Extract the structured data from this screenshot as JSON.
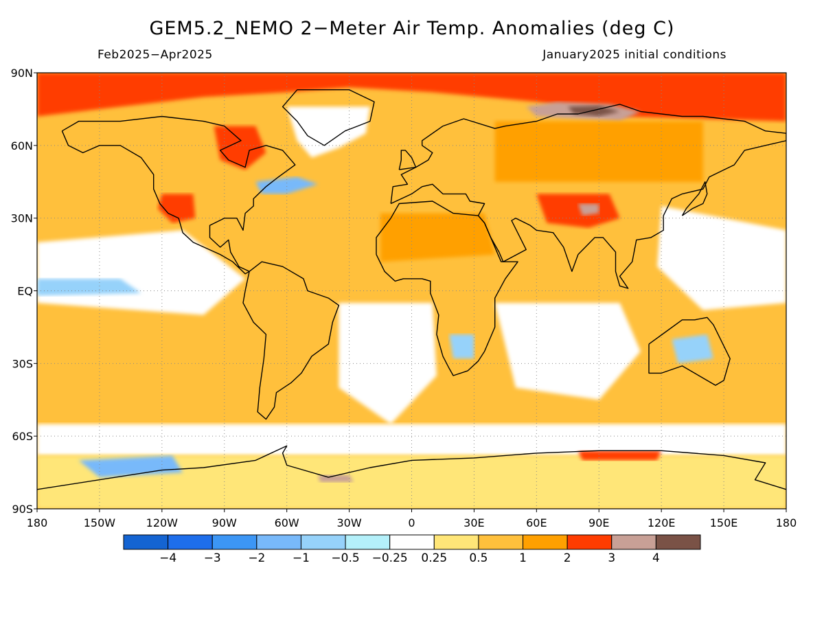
{
  "title": "GEM5.2_NEMO 2−Meter Air Temp. Anomalies (deg C)",
  "subtitle_left": "Feb2025−Apr2025",
  "subtitle_right": "January2025 initial conditions",
  "map": {
    "projection": "equirectangular",
    "lon_range": [
      -180,
      180
    ],
    "lat_range": [
      -90,
      90
    ],
    "grid": "dotted",
    "coastlines": "black"
  },
  "lat_ticks": [
    {
      "lat": 90,
      "label": "90N"
    },
    {
      "lat": 60,
      "label": "60N"
    },
    {
      "lat": 30,
      "label": "30N"
    },
    {
      "lat": 0,
      "label": "EQ"
    },
    {
      "lat": -30,
      "label": "30S"
    },
    {
      "lat": -60,
      "label": "60S"
    },
    {
      "lat": -90,
      "label": "90S"
    }
  ],
  "lon_ticks": [
    {
      "lon": -180,
      "label": "180"
    },
    {
      "lon": -150,
      "label": "150W"
    },
    {
      "lon": -120,
      "label": "120W"
    },
    {
      "lon": -90,
      "label": "90W"
    },
    {
      "lon": -60,
      "label": "60W"
    },
    {
      "lon": -30,
      "label": "30W"
    },
    {
      "lon": 0,
      "label": "0"
    },
    {
      "lon": 30,
      "label": "30E"
    },
    {
      "lon": 60,
      "label": "60E"
    },
    {
      "lon": 90,
      "label": "90E"
    },
    {
      "lon": 120,
      "label": "120E"
    },
    {
      "lon": 150,
      "label": "150E"
    },
    {
      "lon": 180,
      "label": "180"
    }
  ],
  "colorbar": {
    "colors": [
      "#1464d2",
      "#1e6eeb",
      "#3c96f5",
      "#78b9fa",
      "#96d2fa",
      "#b4f0fa",
      "#ffffff",
      "#ffe678",
      "#ffc03c",
      "#ffa000",
      "#ff3c00",
      "#c8a096",
      "#7a5246"
    ],
    "labels": [
      "−4",
      "−3",
      "−2",
      "−1",
      "−0.5",
      "−0.25",
      "0.25",
      "0.5",
      "1",
      "2",
      "3",
      "4"
    ]
  },
  "palette": {
    "ocean_base": "#ffc03c",
    "warm": "#ffa000",
    "mild": "#ffe678",
    "neutral": "#ffffff",
    "strong": "#ff3c00",
    "extreme": "#c8a096",
    "very_extreme": "#7a5246",
    "cool": "#96d2fa",
    "cold": "#78b9fa"
  },
  "anomaly_regions": [
    {
      "name": "arctic-warm",
      "level": "strong",
      "pts": [
        [
          -180,
          90
        ],
        [
          180,
          90
        ],
        [
          180,
          70
        ],
        [
          100,
          72
        ],
        [
          60,
          78
        ],
        [
          10,
          82
        ],
        [
          -30,
          84
        ],
        [
          -60,
          82
        ],
        [
          -100,
          80
        ],
        [
          -140,
          76
        ],
        [
          -180,
          72
        ]
      ]
    },
    {
      "name": "kara-extreme",
      "level": "extreme",
      "pts": [
        [
          55,
          76
        ],
        [
          70,
          78
        ],
        [
          95,
          77
        ],
        [
          110,
          74
        ],
        [
          100,
          70
        ],
        [
          80,
          71
        ],
        [
          60,
          72
        ]
      ]
    },
    {
      "name": "taymyr-very-extreme",
      "level": "very_extreme",
      "pts": [
        [
          75,
          76
        ],
        [
          90,
          76.5
        ],
        [
          100,
          74
        ],
        [
          90,
          72
        ],
        [
          78,
          73
        ]
      ]
    },
    {
      "name": "greenland-neutral",
      "level": "neutral",
      "pts": [
        [
          -60,
          76
        ],
        [
          -20,
          76
        ],
        [
          -22,
          65
        ],
        [
          -35,
          59
        ],
        [
          -48,
          55
        ],
        [
          -55,
          62
        ]
      ]
    },
    {
      "name": "hudson-strong",
      "level": "strong",
      "pts": [
        [
          -95,
          68
        ],
        [
          -75,
          68
        ],
        [
          -70,
          57
        ],
        [
          -80,
          50
        ],
        [
          -92,
          54
        ]
      ]
    },
    {
      "name": "n-atlantic-cold",
      "level": "cold",
      "pts": [
        [
          -75,
          45
        ],
        [
          -55,
          47
        ],
        [
          -45,
          44
        ],
        [
          -60,
          40
        ],
        [
          -72,
          40
        ]
      ]
    },
    {
      "name": "w-us-strong",
      "level": "strong",
      "pts": [
        [
          -120,
          40
        ],
        [
          -105,
          40
        ],
        [
          -104,
          30
        ],
        [
          -115,
          28
        ],
        [
          -122,
          34
        ]
      ]
    },
    {
      "name": "tibet-strong",
      "level": "strong",
      "pts": [
        [
          60,
          40
        ],
        [
          95,
          40
        ],
        [
          100,
          30
        ],
        [
          85,
          26
        ],
        [
          65,
          28
        ]
      ]
    },
    {
      "name": "tibet-extreme",
      "level": "extreme",
      "pts": [
        [
          80,
          36
        ],
        [
          90,
          36
        ],
        [
          90,
          32
        ],
        [
          82,
          31
        ]
      ]
    },
    {
      "name": "e-pacific-neutral",
      "level": "neutral",
      "pts": [
        [
          -180,
          20
        ],
        [
          -110,
          25
        ],
        [
          -80,
          5
        ],
        [
          -100,
          -10
        ],
        [
          -180,
          -5
        ]
      ]
    },
    {
      "name": "eq-pacific-cool",
      "level": "cool",
      "pts": [
        [
          -180,
          5
        ],
        [
          -140,
          5
        ],
        [
          -130,
          -1
        ],
        [
          -180,
          -2
        ]
      ]
    },
    {
      "name": "s-atlantic-neutral",
      "level": "neutral",
      "pts": [
        [
          -35,
          -5
        ],
        [
          10,
          -5
        ],
        [
          12,
          -35
        ],
        [
          -10,
          -55
        ],
        [
          -35,
          -40
        ]
      ]
    },
    {
      "name": "indian-neutral",
      "level": "neutral",
      "pts": [
        [
          40,
          -5
        ],
        [
          100,
          -5
        ],
        [
          110,
          -25
        ],
        [
          90,
          -45
        ],
        [
          50,
          -40
        ]
      ]
    },
    {
      "name": "w-pacific-neutral",
      "level": "neutral",
      "pts": [
        [
          120,
          35
        ],
        [
          180,
          25
        ],
        [
          180,
          -5
        ],
        [
          140,
          -8
        ],
        [
          118,
          10
        ]
      ]
    },
    {
      "name": "s-ocean-neutral",
      "level": "neutral",
      "pts": [
        [
          -180,
          -55
        ],
        [
          180,
          -55
        ],
        [
          180,
          -68
        ],
        [
          -180,
          -68
        ]
      ]
    },
    {
      "name": "antarctic-mild",
      "level": "mild",
      "pts": [
        [
          -180,
          -68
        ],
        [
          180,
          -68
        ],
        [
          180,
          -90
        ],
        [
          -180,
          -90
        ]
      ]
    },
    {
      "name": "ross-cold",
      "level": "cold",
      "pts": [
        [
          -160,
          -70
        ],
        [
          -115,
          -68
        ],
        [
          -110,
          -75
        ],
        [
          -150,
          -77
        ]
      ]
    },
    {
      "name": "weddell-extreme",
      "level": "extreme",
      "pts": [
        [
          -45,
          -76
        ],
        [
          -30,
          -76
        ],
        [
          -28,
          -79
        ],
        [
          -44,
          -79
        ]
      ]
    },
    {
      "name": "e-antarctic-strong",
      "level": "strong",
      "pts": [
        [
          80,
          -66
        ],
        [
          120,
          -66
        ],
        [
          118,
          -70
        ],
        [
          82,
          -70
        ]
      ]
    },
    {
      "name": "s-africa-cool",
      "level": "cool",
      "pts": [
        [
          18,
          -18
        ],
        [
          30,
          -18
        ],
        [
          30,
          -28
        ],
        [
          20,
          -28
        ]
      ]
    },
    {
      "name": "australia-cool",
      "level": "cool",
      "pts": [
        [
          125,
          -20
        ],
        [
          142,
          -18
        ],
        [
          145,
          -28
        ],
        [
          128,
          -30
        ]
      ]
    },
    {
      "name": "sahara-warm",
      "level": "warm",
      "pts": [
        [
          -15,
          32
        ],
        [
          35,
          32
        ],
        [
          40,
          15
        ],
        [
          -15,
          12
        ]
      ]
    },
    {
      "name": "siberia-warm",
      "level": "warm",
      "pts": [
        [
          40,
          70
        ],
        [
          140,
          70
        ],
        [
          140,
          45
        ],
        [
          40,
          45
        ]
      ]
    }
  ],
  "coastlines": [
    [
      [
        -168,
        66
      ],
      [
        -160,
        70
      ],
      [
        -140,
        70
      ],
      [
        -120,
        72
      ],
      [
        -100,
        70
      ],
      [
        -90,
        68
      ],
      [
        -82,
        62
      ],
      [
        -92,
        58
      ],
      [
        -88,
        54
      ],
      [
        -80,
        51
      ],
      [
        -78,
        58
      ],
      [
        -70,
        60
      ],
      [
        -62,
        58
      ],
      [
        -56,
        52
      ],
      [
        -64,
        47
      ],
      [
        -70,
        43
      ],
      [
        -76,
        38
      ],
      [
        -76,
        35
      ],
      [
        -80,
        32
      ],
      [
        -81,
        25
      ],
      [
        -84,
        30
      ],
      [
        -90,
        30
      ],
      [
        -97,
        27
      ],
      [
        -97,
        22
      ],
      [
        -92,
        18
      ],
      [
        -88,
        21
      ],
      [
        -87,
        16
      ],
      [
        -83,
        10
      ],
      [
        -78,
        8
      ],
      [
        -80,
        7
      ],
      [
        -86,
        12
      ],
      [
        -92,
        15
      ],
      [
        -105,
        20
      ],
      [
        -110,
        24
      ],
      [
        -112,
        30
      ],
      [
        -117,
        32
      ],
      [
        -121,
        36
      ],
      [
        -124,
        42
      ],
      [
        -124,
        48
      ],
      [
        -130,
        55
      ],
      [
        -140,
        60
      ],
      [
        -150,
        60
      ],
      [
        -158,
        57
      ],
      [
        -165,
        60
      ],
      [
        -168,
        66
      ]
    ],
    [
      [
        -78,
        8
      ],
      [
        -72,
        12
      ],
      [
        -62,
        10
      ],
      [
        -52,
        5
      ],
      [
        -50,
        0
      ],
      [
        -40,
        -3
      ],
      [
        -35,
        -6
      ],
      [
        -38,
        -13
      ],
      [
        -40,
        -22
      ],
      [
        -48,
        -27
      ],
      [
        -53,
        -34
      ],
      [
        -58,
        -38
      ],
      [
        -65,
        -42
      ],
      [
        -66,
        -48
      ],
      [
        -70,
        -53
      ],
      [
        -74,
        -50
      ],
      [
        -73,
        -40
      ],
      [
        -71,
        -28
      ],
      [
        -70,
        -18
      ],
      [
        -76,
        -13
      ],
      [
        -81,
        -5
      ],
      [
        -80,
        0
      ],
      [
        -78,
        8
      ]
    ],
    [
      [
        -17,
        15
      ],
      [
        -17,
        22
      ],
      [
        -10,
        30
      ],
      [
        -6,
        36
      ],
      [
        10,
        37
      ],
      [
        20,
        32
      ],
      [
        32,
        31
      ],
      [
        35,
        28
      ],
      [
        43,
        12
      ],
      [
        51,
        12
      ],
      [
        45,
        5
      ],
      [
        40,
        -3
      ],
      [
        40,
        -15
      ],
      [
        35,
        -25
      ],
      [
        32,
        -29
      ],
      [
        27,
        -33
      ],
      [
        20,
        -35
      ],
      [
        18,
        -32
      ],
      [
        15,
        -27
      ],
      [
        12,
        -18
      ],
      [
        13,
        -10
      ],
      [
        9,
        -1
      ],
      [
        9,
        4
      ],
      [
        5,
        5
      ],
      [
        -4,
        5
      ],
      [
        -8,
        4
      ],
      [
        -13,
        8
      ],
      [
        -17,
        15
      ]
    ],
    [
      [
        -10,
        36
      ],
      [
        -9,
        43
      ],
      [
        -2,
        44
      ],
      [
        -5,
        48
      ],
      [
        2,
        51
      ],
      [
        8,
        54
      ],
      [
        10,
        57
      ],
      [
        5,
        60
      ],
      [
        5,
        62
      ],
      [
        15,
        68
      ],
      [
        25,
        71
      ],
      [
        40,
        67
      ],
      [
        45,
        68
      ],
      [
        60,
        70
      ],
      [
        70,
        73
      ],
      [
        80,
        73
      ],
      [
        100,
        77
      ],
      [
        110,
        74
      ],
      [
        130,
        72
      ],
      [
        140,
        72
      ],
      [
        160,
        70
      ],
      [
        170,
        66
      ],
      [
        180,
        65
      ],
      [
        180,
        62
      ],
      [
        170,
        60
      ],
      [
        160,
        58
      ],
      [
        155,
        52
      ],
      [
        143,
        47
      ],
      [
        140,
        42
      ],
      [
        130,
        40
      ],
      [
        125,
        38
      ],
      [
        121,
        31
      ],
      [
        121,
        25
      ],
      [
        115,
        22
      ],
      [
        108,
        21
      ],
      [
        106,
        12
      ],
      [
        100,
        6
      ],
      [
        104,
        1
      ],
      [
        100,
        2
      ],
      [
        98,
        8
      ],
      [
        98,
        16
      ],
      [
        92,
        22
      ],
      [
        88,
        22
      ],
      [
        80,
        15
      ],
      [
        77,
        8
      ],
      [
        73,
        18
      ],
      [
        68,
        24
      ],
      [
        60,
        25
      ],
      [
        57,
        27
      ],
      [
        50,
        30
      ],
      [
        48,
        29
      ],
      [
        55,
        17
      ],
      [
        44,
        12
      ],
      [
        42,
        16
      ],
      [
        38,
        22
      ],
      [
        35,
        28
      ],
      [
        32,
        31
      ],
      [
        35,
        36
      ],
      [
        28,
        37
      ],
      [
        26,
        40
      ],
      [
        20,
        40
      ],
      [
        15,
        40
      ],
      [
        10,
        44
      ],
      [
        5,
        43
      ],
      [
        0,
        40
      ],
      [
        -10,
        36
      ]
    ],
    [
      [
        114,
        -22
      ],
      [
        114,
        -34
      ],
      [
        120,
        -34
      ],
      [
        130,
        -31
      ],
      [
        138,
        -35
      ],
      [
        146,
        -39
      ],
      [
        150,
        -37
      ],
      [
        153,
        -28
      ],
      [
        145,
        -14
      ],
      [
        142,
        -11
      ],
      [
        136,
        -12
      ],
      [
        130,
        -12
      ],
      [
        122,
        -17
      ],
      [
        114,
        -22
      ]
    ],
    [
      [
        -55,
        83
      ],
      [
        -30,
        83
      ],
      [
        -18,
        78
      ],
      [
        -20,
        70
      ],
      [
        -32,
        66
      ],
      [
        -42,
        60
      ],
      [
        -50,
        64
      ],
      [
        -55,
        70
      ],
      [
        -62,
        76
      ],
      [
        -55,
        83
      ]
    ],
    [
      [
        -180,
        -82
      ],
      [
        -150,
        -78
      ],
      [
        -120,
        -74
      ],
      [
        -100,
        -73
      ],
      [
        -75,
        -70
      ],
      [
        -60,
        -64
      ],
      [
        -62,
        -67
      ],
      [
        -60,
        -72
      ],
      [
        -40,
        -77
      ],
      [
        -20,
        -73
      ],
      [
        0,
        -70
      ],
      [
        30,
        -69
      ],
      [
        60,
        -67
      ],
      [
        90,
        -66
      ],
      [
        120,
        -66
      ],
      [
        150,
        -68
      ],
      [
        170,
        -71
      ],
      [
        165,
        -78
      ],
      [
        180,
        -82
      ]
    ],
    [
      [
        -6,
        50
      ],
      [
        2,
        51
      ],
      [
        0,
        55
      ],
      [
        -3,
        58
      ],
      [
        -5,
        58
      ],
      [
        -5,
        54
      ],
      [
        -6,
        50
      ]
    ],
    [
      [
        130,
        31
      ],
      [
        135,
        34
      ],
      [
        140,
        36
      ],
      [
        142,
        40
      ],
      [
        141,
        45
      ],
      [
        138,
        40
      ],
      [
        132,
        34
      ],
      [
        130,
        31
      ]
    ]
  ]
}
